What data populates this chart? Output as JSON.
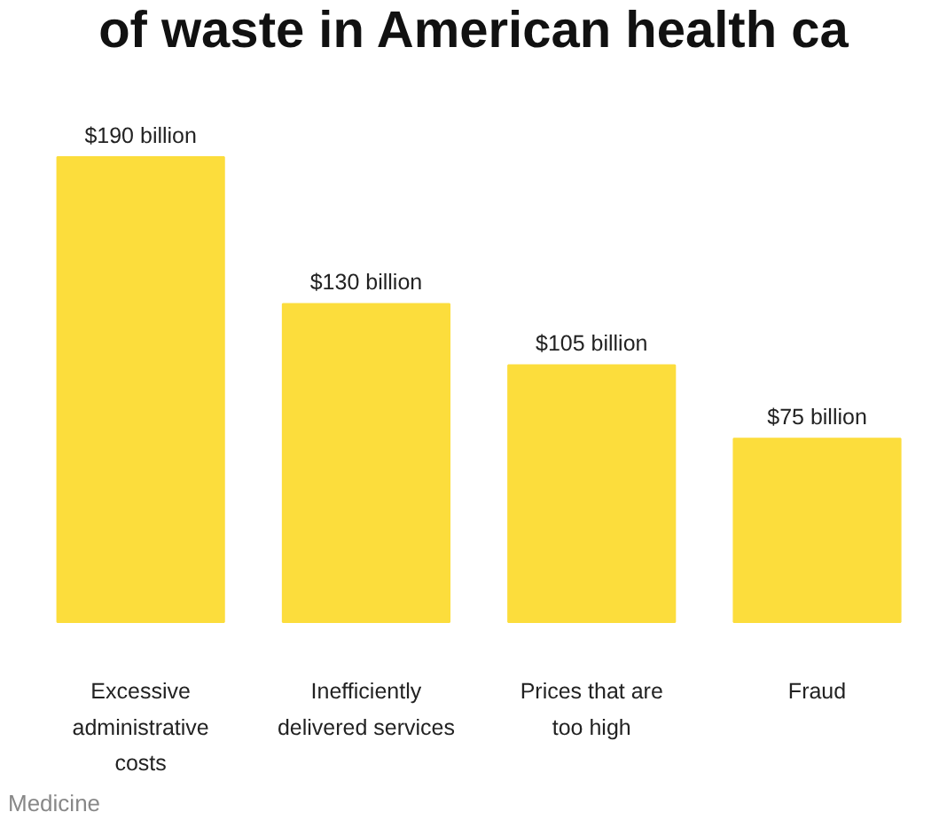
{
  "chart_data": {
    "type": "bar",
    "title": "of waste in American health ca",
    "categories": [
      "Excessive administrative costs",
      "Inefficiently delivered services",
      "Prices that are too high",
      "Fraud"
    ],
    "values": [
      190,
      130,
      105,
      75
    ],
    "color": "#fcdd3c",
    "value_labels": [
      "$190 billion",
      "$130 billion",
      "$105 billion",
      "$75 billion"
    ],
    "annotations": [
      "Medicine"
    ],
    "grid": false
  }
}
